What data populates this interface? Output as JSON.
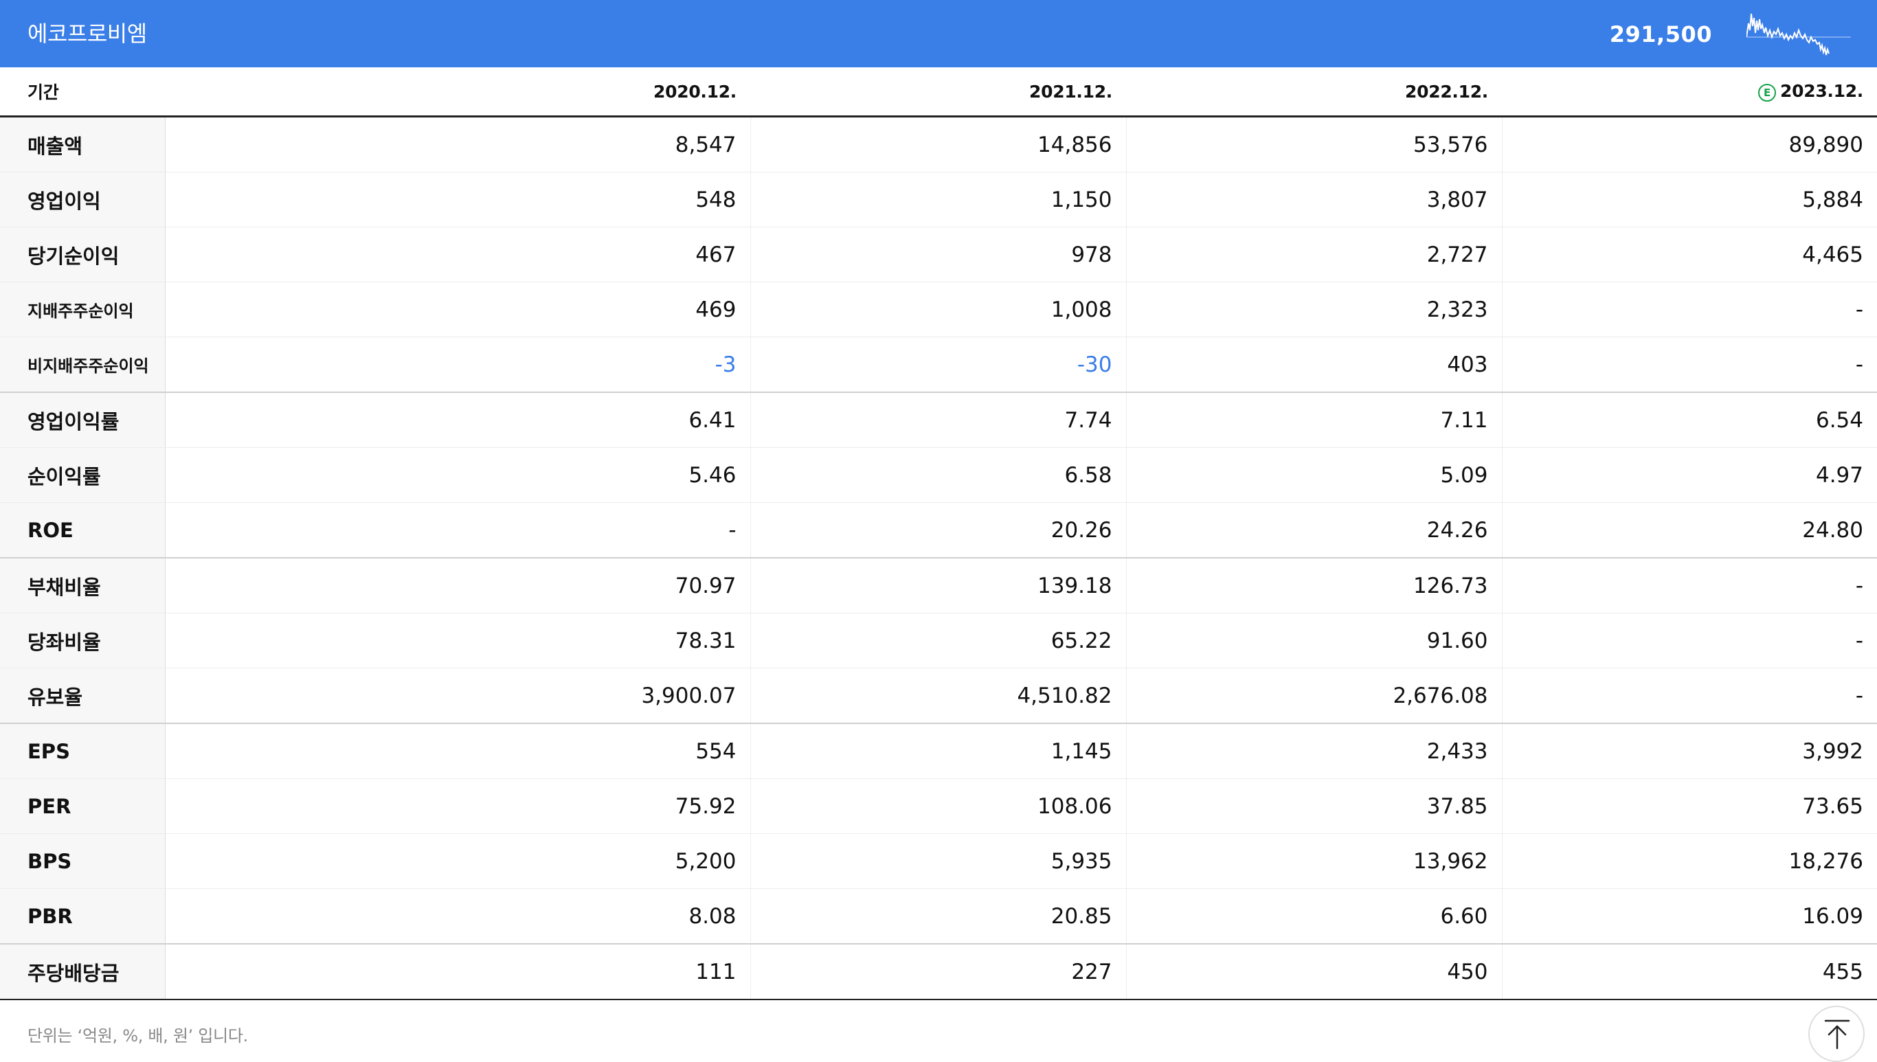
{
  "header": {
    "company_name": "에코프로비엠",
    "current_price": "291,500",
    "header_bg": "#3a7ee8",
    "sparkline_icon": "price-sparkline"
  },
  "table": {
    "period_label": "기간",
    "columns": [
      {
        "label": "2020.12.",
        "estimate": false
      },
      {
        "label": "2021.12.",
        "estimate": false
      },
      {
        "label": "2022.12.",
        "estimate": false
      },
      {
        "label": "2023.12.",
        "estimate": true,
        "estimate_mark": "E"
      }
    ],
    "rows": [
      {
        "label": "매출액",
        "values": [
          "8,547",
          "14,856",
          "53,576",
          "89,890"
        ]
      },
      {
        "label": "영업이익",
        "values": [
          "548",
          "1,150",
          "3,807",
          "5,884"
        ]
      },
      {
        "label": "당기순이익",
        "values": [
          "467",
          "978",
          "2,727",
          "4,465"
        ]
      },
      {
        "label": "지배주주순이익",
        "values": [
          "469",
          "1,008",
          "2,323",
          "-"
        ]
      },
      {
        "label": "비지배주주순이익",
        "values": [
          "-3",
          "-30",
          "403",
          "-"
        ]
      },
      {
        "label": "영업이익률",
        "values": [
          "6.41",
          "7.74",
          "7.11",
          "6.54"
        ]
      },
      {
        "label": "순이익률",
        "values": [
          "5.46",
          "6.58",
          "5.09",
          "4.97"
        ]
      },
      {
        "label": "ROE",
        "values": [
          "-",
          "20.26",
          "24.26",
          "24.80"
        ]
      },
      {
        "label": "부채비율",
        "values": [
          "70.97",
          "139.18",
          "126.73",
          "-"
        ]
      },
      {
        "label": "당좌비율",
        "values": [
          "78.31",
          "65.22",
          "91.60",
          "-"
        ]
      },
      {
        "label": "유보율",
        "values": [
          "3,900.07",
          "4,510.82",
          "2,676.08",
          "-"
        ]
      },
      {
        "label": "EPS",
        "values": [
          "554",
          "1,145",
          "2,433",
          "3,992"
        ]
      },
      {
        "label": "PER",
        "values": [
          "75.92",
          "108.06",
          "37.85",
          "73.65"
        ]
      },
      {
        "label": "BPS",
        "values": [
          "5,200",
          "5,935",
          "13,962",
          "18,276"
        ]
      },
      {
        "label": "PBR",
        "values": [
          "8.08",
          "20.85",
          "6.60",
          "16.09"
        ]
      },
      {
        "label": "주당배당금",
        "values": [
          "111",
          "227",
          "450",
          "455"
        ]
      }
    ],
    "negative_color": "#3a7ee8"
  },
  "footer": {
    "unit_note": "단위는 ‘억원, %, 배, 원’ 입니다.",
    "top_button_icon": "arrow-up-to-top-icon"
  }
}
